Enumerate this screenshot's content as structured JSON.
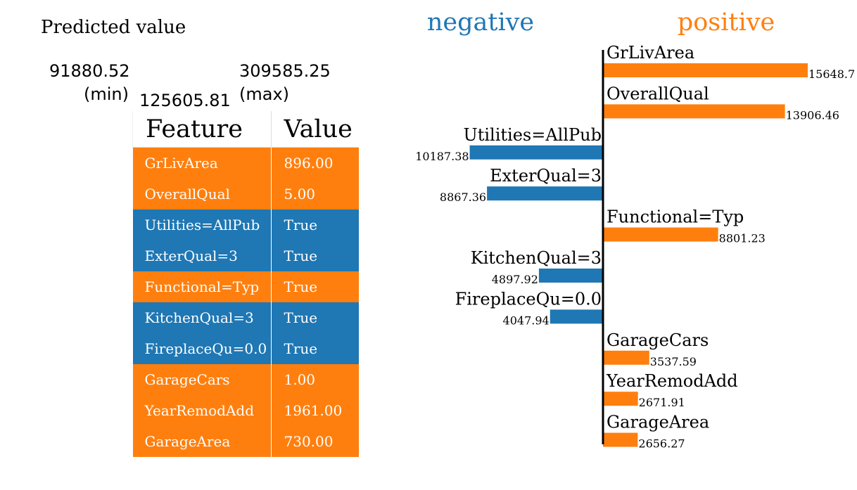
{
  "predicted": {
    "title": "Predicted value",
    "min_value": "91880.52",
    "min_suffix": "(min)",
    "max_value": "309585.25",
    "max_suffix": "(max)",
    "value": "125605.81"
  },
  "colors": {
    "positive": "#ff7f0e",
    "negative": "#1f77b4"
  },
  "table": {
    "headers": [
      "Feature",
      "Value"
    ],
    "rows": [
      {
        "feature": "GrLivArea",
        "value": "896.00",
        "sign": "positive"
      },
      {
        "feature": "OverallQual",
        "value": "5.00",
        "sign": "positive"
      },
      {
        "feature": "Utilities=AllPub",
        "value": "True",
        "sign": "negative"
      },
      {
        "feature": "ExterQual=3",
        "value": "True",
        "sign": "negative"
      },
      {
        "feature": "Functional=Typ",
        "value": "True",
        "sign": "positive"
      },
      {
        "feature": "KitchenQual=3",
        "value": "True",
        "sign": "negative"
      },
      {
        "feature": "FireplaceQu=0.0",
        "value": "True",
        "sign": "negative"
      },
      {
        "feature": "GarageCars",
        "value": "1.00",
        "sign": "positive"
      },
      {
        "feature": "YearRemodAdd",
        "value": "1961.00",
        "sign": "positive"
      },
      {
        "feature": "GarageArea",
        "value": "730.00",
        "sign": "positive"
      }
    ]
  },
  "chart_data": {
    "type": "bar",
    "orientation": "horizontal",
    "legend": {
      "negative": "negative",
      "positive": "positive"
    },
    "categories": [
      "GrLivArea",
      "OverallQual",
      "Utilities=AllPub",
      "ExterQual=3",
      "Functional=Typ",
      "KitchenQual=3",
      "FireplaceQu=0.0",
      "GarageCars",
      "YearRemodAdd",
      "GarageArea"
    ],
    "values": [
      15648.7,
      13906.46,
      -10187.38,
      -8867.36,
      8801.23,
      -4897.92,
      -4047.94,
      3537.59,
      2671.91,
      2656.27
    ],
    "value_labels": [
      "15648.7",
      "13906.46",
      "10187.38",
      "8867.36",
      "8801.23",
      "4897.92",
      "4047.94",
      "3537.59",
      "2671.91",
      "2656.27"
    ]
  }
}
